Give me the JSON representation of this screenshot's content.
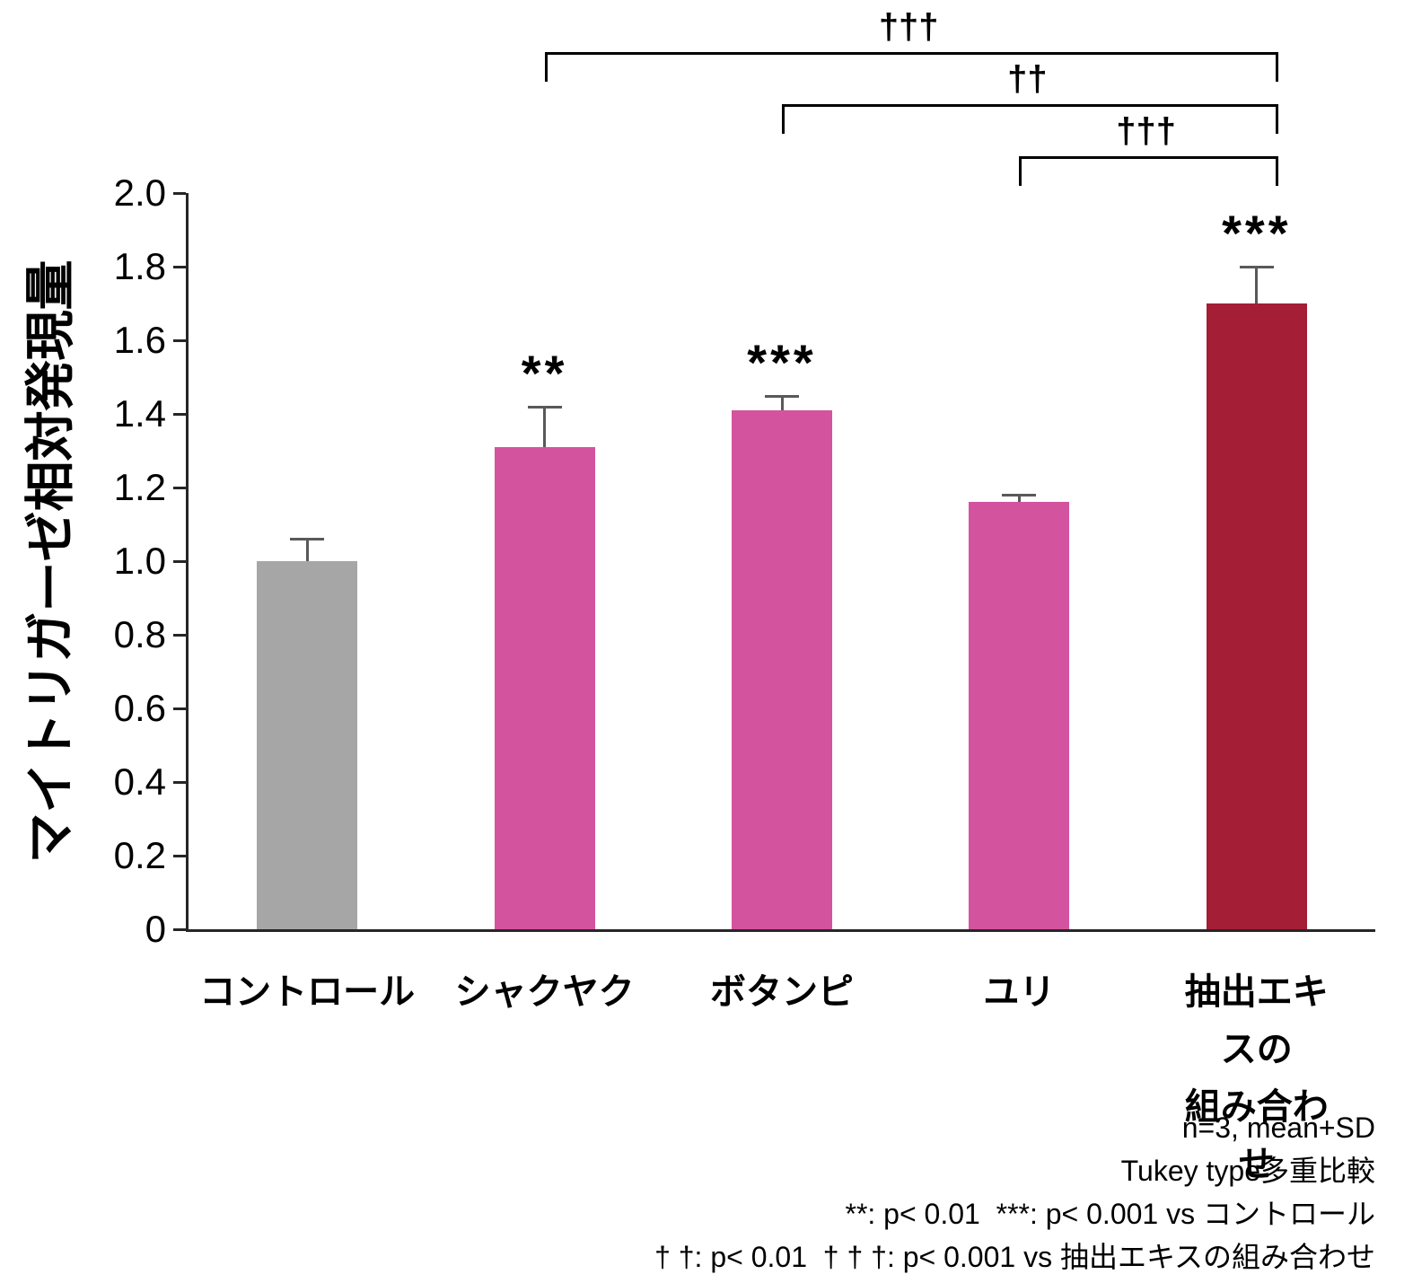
{
  "chart_data": {
    "type": "bar",
    "title": "",
    "ylabel": "マイトリガーゼ相対発現量",
    "xlabel": "",
    "ylim": [
      0,
      2.0
    ],
    "yticks": [
      "0",
      "0.2",
      "0.4",
      "0.6",
      "0.8",
      "1.0",
      "1.2",
      "1.4",
      "1.6",
      "1.8",
      "2.0"
    ],
    "categories": [
      "コントロール",
      "シャクヤク",
      "ボタンピ",
      "ユリ",
      "抽出エキスの\n組み合わせ"
    ],
    "values": [
      1.0,
      1.31,
      1.41,
      1.16,
      1.7
    ],
    "errors": [
      0.06,
      0.11,
      0.04,
      0.02,
      0.1
    ],
    "bar_colors": [
      "#a6a6a6",
      "#d4539f",
      "#d4539f",
      "#d4539f",
      "#a41e35"
    ],
    "error_color": "#595959",
    "axis_color": "#262626",
    "sig_labels": [
      "",
      "**",
      "***",
      "",
      "***"
    ],
    "comparisons": [
      {
        "label": "†††",
        "from": 1,
        "to": 4,
        "level": 0
      },
      {
        "label": "††",
        "from": 2,
        "to": 4,
        "level": 1
      },
      {
        "label": "†††",
        "from": 3,
        "to": 4,
        "level": 2
      }
    ],
    "grid": false,
    "legend": null
  },
  "footnotes": [
    "n=3, mean+SD",
    "Tukey type多重比較",
    "**: p< 0.01  ***: p< 0.001 vs コントロール",
    "† †: p< 0.01  † † †: p< 0.001 vs 抽出エキスの組み合わせ"
  ]
}
